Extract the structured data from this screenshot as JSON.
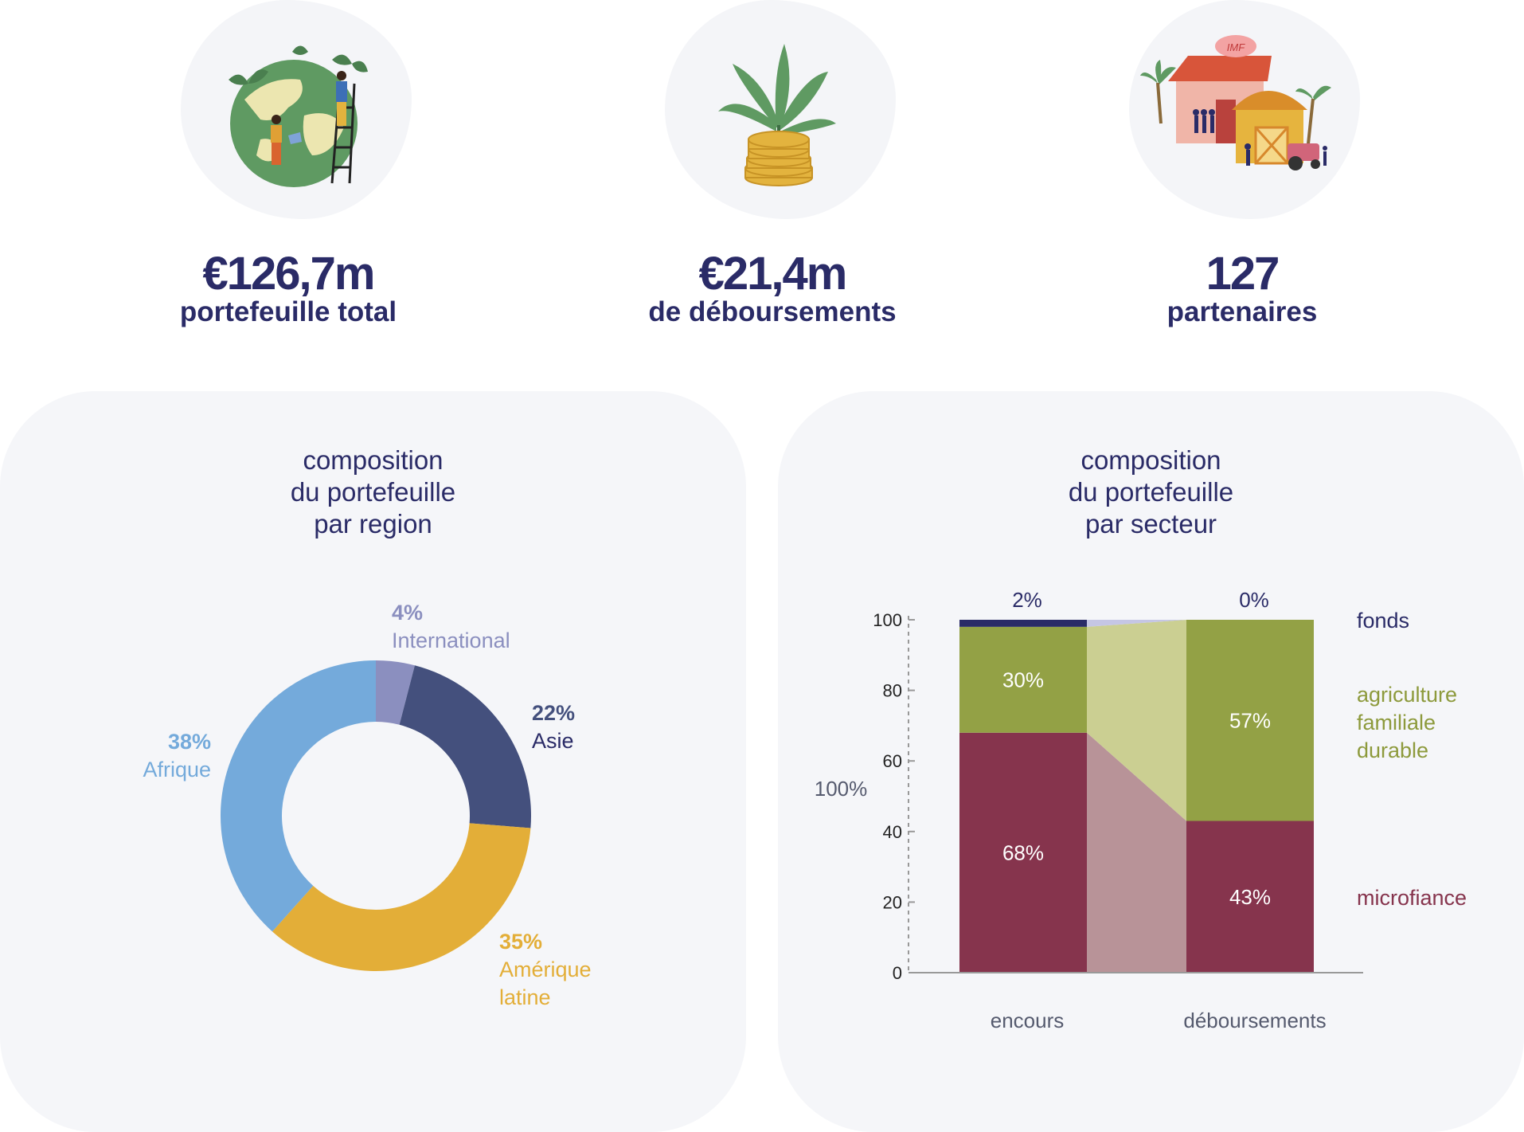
{
  "kpis": [
    {
      "value": "€126,7m",
      "label": "portefeuille total",
      "icon": "globe-planting-icon"
    },
    {
      "value": "€21,4m",
      "label": "de déboursements",
      "icon": "plant-on-coins-icon"
    },
    {
      "value": "127",
      "label": "partenaires",
      "icon": "partners-buildings-icon"
    }
  ],
  "icon_badge": "IMF",
  "region_panel": {
    "title_lines": [
      "composition",
      "du portefeuille",
      "par region"
    ]
  },
  "sector_panel": {
    "title_lines": [
      "composition",
      "du portefeuille",
      "par secteur"
    ]
  },
  "colors": {
    "international": "#8b8fbf",
    "asie": "#44507d",
    "amerique": "#e3ae38",
    "afrique": "#74aadb",
    "fonds": "#2a2b67",
    "fonds_link": "#c5c6e4",
    "agri": "#93a145",
    "agri_link": "#cbcf92",
    "micro": "#86344d",
    "micro_link": "#b89398",
    "text": "#2a2b67",
    "agri_text": "#8d9a3c",
    "micro_text": "#86344d"
  },
  "chart_data": [
    {
      "type": "pie",
      "variant": "donut",
      "slices": [
        {
          "pct_label": "4%",
          "name": "International",
          "value": 4,
          "color_key": "international"
        },
        {
          "pct_label": "22%",
          "name": "Asie",
          "value": 22,
          "color_key": "asie"
        },
        {
          "pct_label": "35%",
          "name_lines": [
            "Amérique",
            "latine"
          ],
          "value": 35,
          "color_key": "amerique"
        },
        {
          "pct_label": "38%",
          "name": "Afrique",
          "value": 38,
          "color_key": "afrique"
        }
      ]
    },
    {
      "type": "bar",
      "variant": "stacked-100",
      "categories": [
        "encours",
        "déboursements"
      ],
      "ylim": [
        0,
        100
      ],
      "yticks": [
        0,
        20,
        40,
        60,
        80,
        100
      ],
      "ylabel": "100%",
      "series": [
        {
          "name": "microfiance",
          "values": [
            68,
            43
          ],
          "labels": [
            "68%",
            "43%"
          ],
          "color_key": "micro",
          "link_key": "micro_link",
          "text_key": "micro_text"
        },
        {
          "name_lines": [
            "agriculture",
            "familiale",
            "durable"
          ],
          "values": [
            30,
            57
          ],
          "labels": [
            "30%",
            "57%"
          ],
          "color_key": "agri",
          "link_key": "agri_link",
          "text_key": "agri_text"
        },
        {
          "name": "fonds",
          "values": [
            2,
            0
          ],
          "labels": [
            "2%",
            "0%"
          ],
          "color_key": "fonds",
          "link_key": "fonds_link",
          "text_key": "text"
        }
      ]
    }
  ]
}
